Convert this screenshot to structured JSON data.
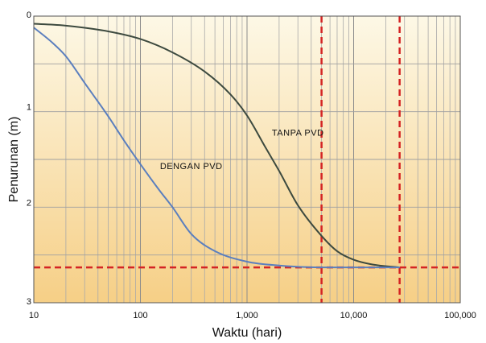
{
  "chart_data": {
    "type": "line",
    "title": "",
    "xlabel": "Waktu (hari)",
    "ylabel": "Penurunan (m)",
    "x_scale": "log",
    "xlim": [
      10,
      100000
    ],
    "ylim": [
      0,
      3
    ],
    "y_inverted": true,
    "x_ticks": [
      {
        "value": 10,
        "label": "10"
      },
      {
        "value": 100,
        "label": "100"
      },
      {
        "value": 1000,
        "label": "1,000"
      },
      {
        "value": 10000,
        "label": "10,000"
      },
      {
        "value": 100000,
        "label": "100,000"
      }
    ],
    "y_ticks": [
      {
        "value": 0,
        "label": "0"
      },
      {
        "value": 1,
        "label": "1"
      },
      {
        "value": 2,
        "label": "2"
      },
      {
        "value": 3,
        "label": "3"
      }
    ],
    "grid": true,
    "series": [
      {
        "name": "TANPA PVD",
        "color": "#3d4a3f",
        "x": [
          10,
          20,
          50,
          100,
          200,
          400,
          700,
          1000,
          1500,
          2000,
          3000,
          5000,
          7000,
          10000,
          15000,
          27000
        ],
        "y": [
          0.08,
          0.1,
          0.16,
          0.24,
          0.38,
          0.58,
          0.82,
          1.04,
          1.38,
          1.62,
          1.98,
          2.3,
          2.46,
          2.55,
          2.6,
          2.63
        ]
      },
      {
        "name": "DENGAN PVD",
        "color": "#5b7fbe",
        "x": [
          10,
          15,
          20,
          30,
          50,
          70,
          100,
          150,
          200,
          300,
          500,
          1000,
          2000,
          5000,
          10000,
          20000,
          27000
        ],
        "y": [
          0.12,
          0.28,
          0.42,
          0.7,
          1.05,
          1.3,
          1.55,
          1.82,
          2.0,
          2.28,
          2.46,
          2.57,
          2.61,
          2.63,
          2.63,
          2.63,
          2.63
        ]
      }
    ],
    "reference_lines": [
      {
        "orientation": "horizontal",
        "y": 2.63,
        "color": "#d42424",
        "style": "dashed"
      },
      {
        "orientation": "vertical",
        "x": 5000,
        "color": "#d42424",
        "style": "dashed"
      },
      {
        "orientation": "vertical",
        "x": 27000,
        "color": "#d42424",
        "style": "dashed"
      }
    ],
    "annotations": [
      {
        "text": "TANPA PVD",
        "x": 3000,
        "y": 1.25
      },
      {
        "text": "DENGAN PVD",
        "x": 300,
        "y": 1.6
      }
    ],
    "background_gradient": [
      "#fdf8e6",
      "#f6cf86"
    ]
  }
}
